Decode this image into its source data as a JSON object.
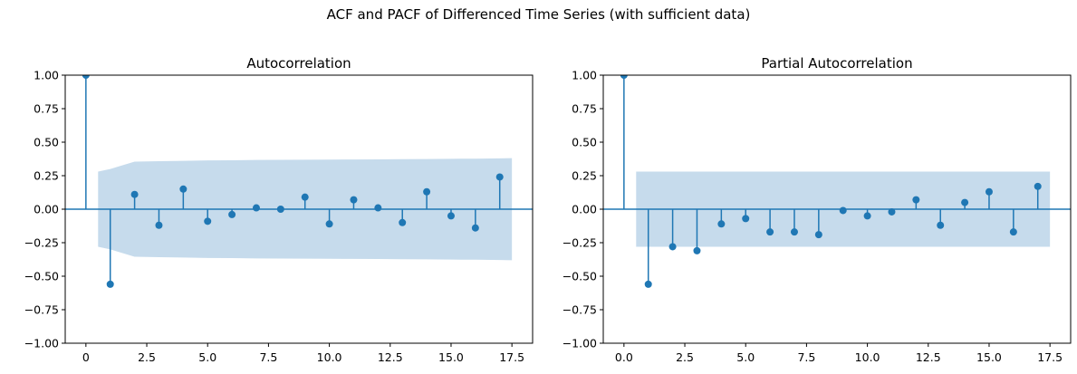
{
  "figure": {
    "suptitle": "ACF and PACF of Differenced Time Series (with sufficient data)"
  },
  "colors": {
    "stem": "#1f77b4",
    "confidence_band": "#c6dbec",
    "zero_line": "#1f77b4",
    "axes": "#000000"
  },
  "chart_data": [
    {
      "type": "stem",
      "title": "Autocorrelation",
      "xlabel": "",
      "ylabel": "",
      "xlim": [
        -0.85,
        18.35
      ],
      "ylim": [
        -1.0,
        1.0
      ],
      "xticks": [
        0,
        2.5,
        5,
        7.5,
        10,
        12.5,
        15,
        17.5
      ],
      "xtick_labels": [
        "0",
        "2.5",
        "5.0",
        "7.5",
        "10.0",
        "12.5",
        "15.0",
        "17.5"
      ],
      "yticks": [
        -1,
        -0.75,
        -0.5,
        -0.25,
        0,
        0.25,
        0.5,
        0.75,
        1
      ],
      "ytick_labels": [
        "−1.00",
        "−0.75",
        "−0.50",
        "−0.25",
        "0.00",
        "0.25",
        "0.50",
        "0.75",
        "1.00"
      ],
      "lags": [
        0,
        1,
        2,
        3,
        4,
        5,
        6,
        7,
        8,
        9,
        10,
        11,
        12,
        13,
        14,
        15,
        16,
        17
      ],
      "values": [
        1.0,
        -0.56,
        0.11,
        -0.12,
        0.15,
        -0.09,
        -0.04,
        0.01,
        0.0,
        0.09,
        -0.11,
        0.07,
        0.01,
        -0.1,
        0.13,
        -0.05,
        -0.14,
        0.24
      ],
      "confidence_band": {
        "x": [
          0.5,
          1,
          2,
          3,
          4,
          5,
          6,
          7,
          8,
          9,
          10,
          11,
          12,
          13,
          14,
          15,
          16,
          17,
          17.5
        ],
        "upper": [
          0.28,
          0.3,
          0.355,
          0.358,
          0.361,
          0.364,
          0.365,
          0.367,
          0.368,
          0.369,
          0.37,
          0.371,
          0.372,
          0.373,
          0.374,
          0.376,
          0.377,
          0.379,
          0.381
        ],
        "lower": [
          -0.28,
          -0.3,
          -0.355,
          -0.358,
          -0.361,
          -0.364,
          -0.365,
          -0.367,
          -0.368,
          -0.369,
          -0.37,
          -0.371,
          -0.372,
          -0.373,
          -0.374,
          -0.376,
          -0.377,
          -0.379,
          -0.381
        ]
      },
      "grid": false,
      "legend": "none"
    },
    {
      "type": "stem",
      "title": "Partial Autocorrelation",
      "xlabel": "",
      "ylabel": "",
      "xlim": [
        -0.85,
        18.35
      ],
      "ylim": [
        -1.0,
        1.0
      ],
      "xticks": [
        0,
        2.5,
        5,
        7.5,
        10,
        12.5,
        15,
        17.5
      ],
      "xtick_labels": [
        "0.0",
        "2.5",
        "5.0",
        "7.5",
        "10.0",
        "12.5",
        "15.0",
        "17.5"
      ],
      "yticks": [
        -1,
        -0.75,
        -0.5,
        -0.25,
        0,
        0.25,
        0.5,
        0.75,
        1
      ],
      "ytick_labels": [
        "−1.00",
        "−0.75",
        "−0.50",
        "−0.25",
        "0.00",
        "0.25",
        "0.50",
        "0.75",
        "1.00"
      ],
      "lags": [
        0,
        1,
        2,
        3,
        4,
        5,
        6,
        7,
        8,
        9,
        10,
        11,
        12,
        13,
        14,
        15,
        16,
        17
      ],
      "values": [
        1.0,
        -0.56,
        -0.28,
        -0.31,
        -0.11,
        -0.07,
        -0.17,
        -0.17,
        -0.19,
        -0.01,
        -0.05,
        -0.02,
        0.07,
        -0.12,
        0.05,
        0.13,
        -0.17,
        0.17
      ],
      "confidence_band": {
        "x": [
          0.5,
          17.5
        ],
        "upper": [
          0.28,
          0.28
        ],
        "lower": [
          -0.28,
          -0.28
        ]
      },
      "grid": false,
      "legend": "none"
    }
  ]
}
